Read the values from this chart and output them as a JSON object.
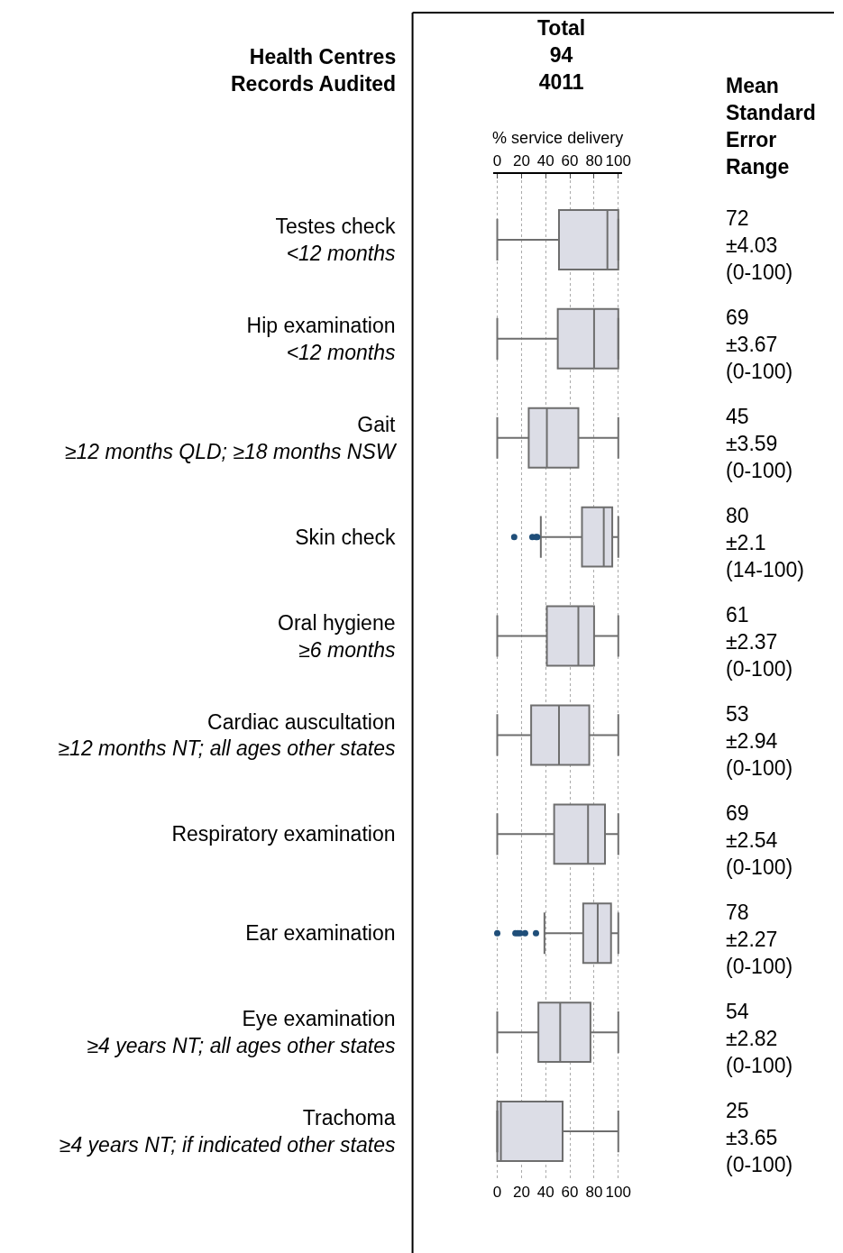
{
  "chart_data": {
    "type": "box",
    "orientation": "horizontal",
    "categories": [
      "Testes check\n<12 months",
      "Hip examination\n<12 months",
      "Gait\n≥12 months QLD; ≥18 months NSW",
      "Skin check",
      "Oral hygiene\n≥6 months",
      "Cardiac auscultation\n≥12 months NT; all ages other states",
      "Respiratory examination",
      "Ear examination",
      "Eye examination\n≥4 years NT; all ages other states",
      "Trachoma\n≥4 years NT; if indicated other states"
    ],
    "series": [
      {
        "color": "#dcdde6",
        "boxes": [
          {
            "low": 0,
            "q1": 51,
            "median": 91,
            "q3": 100,
            "high": 100
          },
          {
            "low": 0,
            "q1": 50,
            "median": 80,
            "q3": 100,
            "high": 100
          },
          {
            "low": 0,
            "q1": 26,
            "median": 41,
            "q3": 67,
            "high": 100
          },
          {
            "low": 36,
            "q1": 70,
            "median": 88,
            "q3": 95,
            "high": 100,
            "outliers": [
              14,
              29,
              32,
              33
            ]
          },
          {
            "low": 0,
            "q1": 41,
            "median": 67,
            "q3": 80,
            "high": 100
          },
          {
            "low": 0,
            "q1": 28,
            "median": 51,
            "q3": 76,
            "high": 100
          },
          {
            "low": 0,
            "q1": 47,
            "median": 75,
            "q3": 89,
            "high": 100
          },
          {
            "low": 39,
            "q1": 71,
            "median": 83,
            "q3": 94,
            "high": 100,
            "outliers": [
              0,
              15,
              17,
              19,
              23,
              32
            ]
          },
          {
            "low": 0,
            "q1": 34,
            "median": 52,
            "q3": 77,
            "high": 100
          },
          {
            "low": 0,
            "q1": 0,
            "median": 3,
            "q3": 54,
            "high": 100
          }
        ]
      }
    ],
    "xlim": [
      -3,
      103
    ],
    "xticks": [
      0,
      20,
      40,
      60,
      80,
      100
    ],
    "x2lim": [
      -3,
      103
    ],
    "x2ticks": [
      0,
      20,
      40,
      60,
      80,
      100
    ],
    "x2label": "% service delivery",
    "grid": "x",
    "annotations": [
      "Health Centres\nRecords Audited",
      "Total\n94\n4011",
      "Mean\nStandard\nError\nRange",
      "72\n±4.03\n(0-100)",
      "69\n±3.67\n(0-100)",
      "45\n±3.59\n(0-100)",
      "80\n±2.1\n(14-100)",
      "61\n±2.37\n(0-100)",
      "53\n±2.94\n(0-100)",
      "69\n±2.54\n(0-100)",
      "78\n±2.27\n(0-100)",
      "54\n±2.82\n(0-100)",
      "25\n±3.65\n(0-100)"
    ]
  }
}
